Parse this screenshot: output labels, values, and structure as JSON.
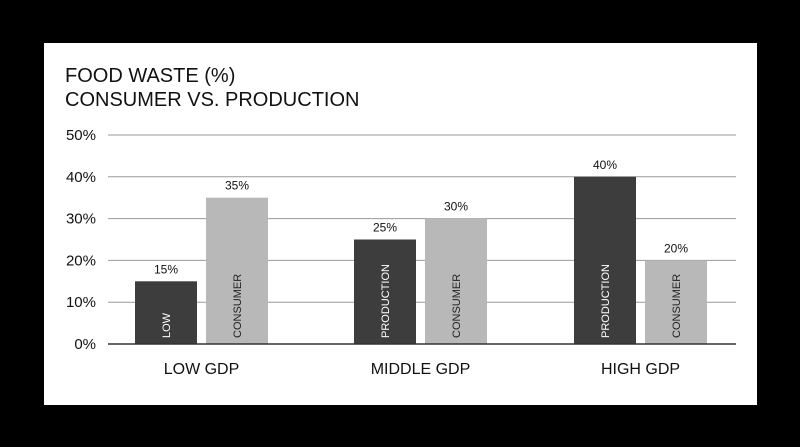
{
  "colors": {
    "background": "#000000",
    "panel": "#ffffff",
    "grid": "#9a9a9a",
    "axis": "#333333",
    "text": "#111111",
    "production": "#3d3d3d",
    "consumer": "#b8b8b8",
    "production_label": "#ffffff",
    "consumer_label": "#222222"
  },
  "chart_data": {
    "type": "bar",
    "title": "FOOD WASTE (%)",
    "subtitle": "CONSUMER VS. PRODUCTION",
    "xlabel": "",
    "ylabel": "",
    "ylim": [
      0,
      50
    ],
    "yticks": [
      0,
      10,
      20,
      30,
      40,
      50
    ],
    "ytick_labels": [
      "0%",
      "10%",
      "20%",
      "30%",
      "40%",
      "50%"
    ],
    "grid": true,
    "legend": "none",
    "categories": [
      "LOW GDP",
      "MIDDLE GDP",
      "HIGH GDP"
    ],
    "groups": [
      {
        "category": "LOW GDP",
        "bars": [
          {
            "label": "LOW",
            "value": 15,
            "value_label": "15%",
            "style": "production"
          },
          {
            "label": "CONSUMER",
            "value": 35,
            "value_label": "35%",
            "style": "consumer"
          }
        ]
      },
      {
        "category": "MIDDLE GDP",
        "bars": [
          {
            "label": "PRODUCTION",
            "value": 25,
            "value_label": "25%",
            "style": "production"
          },
          {
            "label": "CONSUMER",
            "value": 30,
            "value_label": "30%",
            "style": "consumer"
          }
        ]
      },
      {
        "category": "HIGH GDP",
        "bars": [
          {
            "label": "PRODUCTION",
            "value": 40,
            "value_label": "40%",
            "style": "production"
          },
          {
            "label": "CONSUMER",
            "value": 20,
            "value_label": "20%",
            "style": "consumer"
          }
        ]
      }
    ]
  }
}
